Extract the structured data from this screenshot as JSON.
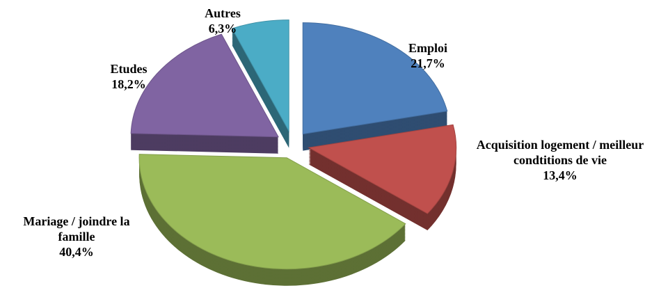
{
  "chart_data": {
    "type": "pie",
    "categories": [
      "Emploi",
      "Acquisition logement / meilleur condtitions de vie",
      "Mariage / joindre la famille",
      "Etudes",
      "Autres"
    ],
    "values": [
      21.7,
      13.4,
      40.4,
      18.2,
      6.3
    ],
    "value_labels": [
      "21,7%",
      "13,4%",
      "40,4%",
      "18,2%",
      "6,3%"
    ],
    "colors": [
      "#4f81bd",
      "#c0504d",
      "#9bbb59",
      "#8064a2",
      "#4bacc6"
    ]
  }
}
